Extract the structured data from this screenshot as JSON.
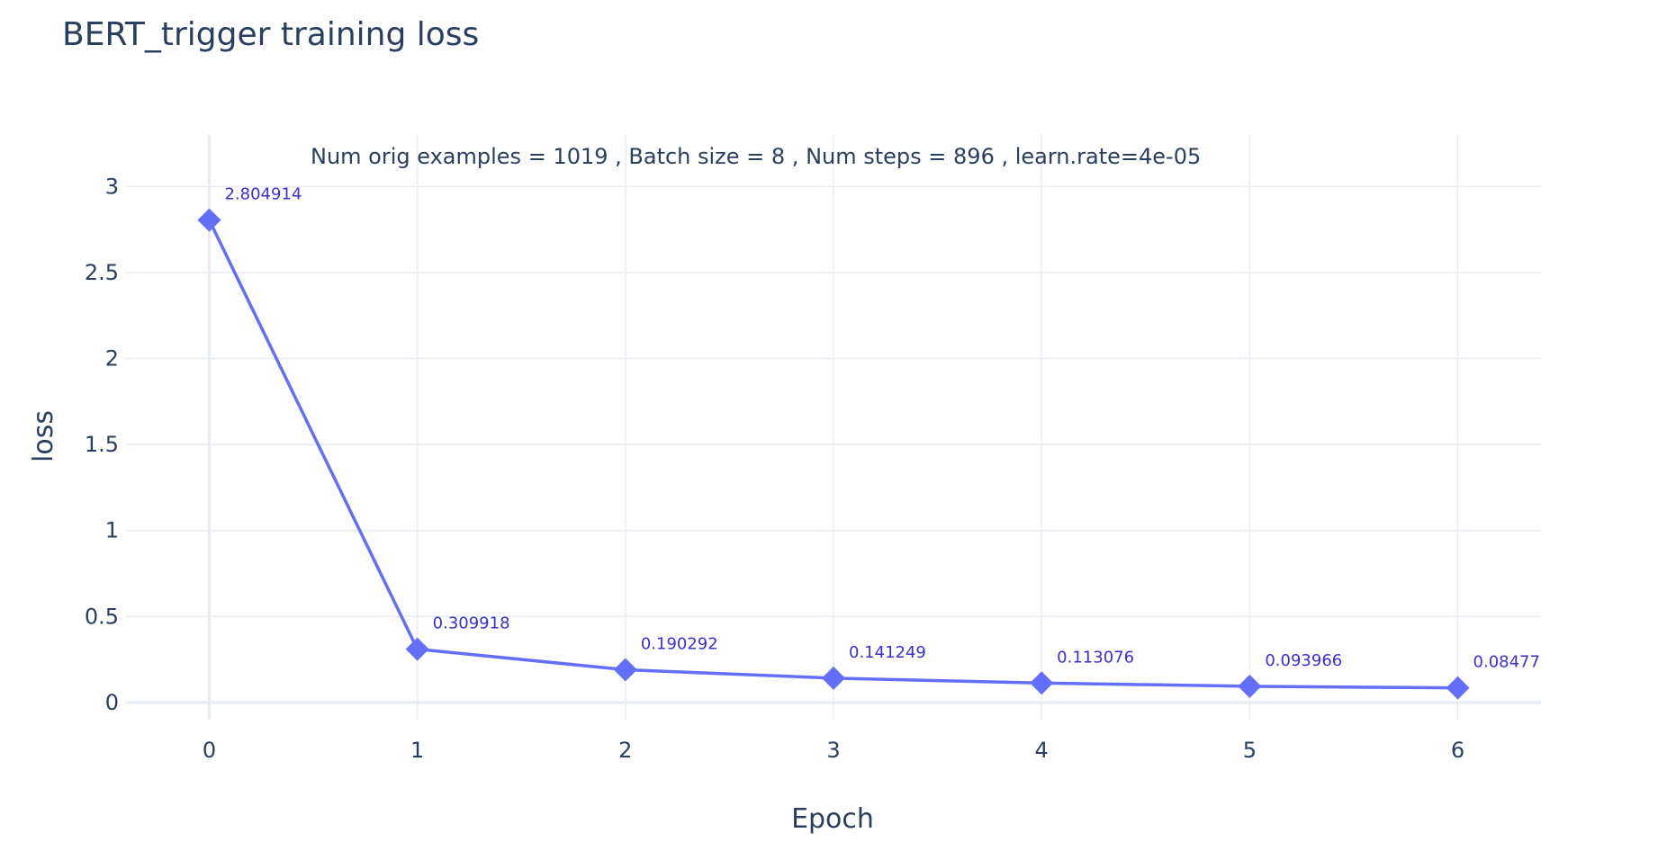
{
  "chart_data": {
    "type": "line",
    "title": "BERT_trigger training loss",
    "annotation": "Num orig examples = 1019 ,   Batch size = 8   ,  Num steps = 896 , learn.rate=4e-05",
    "xlabel": "Epoch",
    "ylabel": "loss",
    "x": [
      0,
      1,
      2,
      3,
      4,
      5,
      6
    ],
    "xticks": [
      "0",
      "1",
      "2",
      "3",
      "4",
      "5",
      "6"
    ],
    "yticks": [
      0,
      0.5,
      1,
      1.5,
      2,
      2.5,
      3
    ],
    "ytick_labels": [
      "0",
      "0.5",
      "1",
      "1.5",
      "2",
      "2.5",
      "3"
    ],
    "xlim": [
      -0.4,
      6.4
    ],
    "ylim": [
      -0.1,
      3.3
    ],
    "grid": true,
    "series": [
      {
        "values": [
          2.804914,
          0.309918,
          0.190292,
          0.141249,
          0.113076,
          0.093966,
          0.084777
        ],
        "labels": [
          "2.804914",
          "0.309918",
          "0.190292",
          "0.141249",
          "0.113076",
          "0.093966",
          "0.084777"
        ],
        "marker": "diamond",
        "color": "#636efa",
        "label_color": "#3a2fd6"
      }
    ]
  }
}
